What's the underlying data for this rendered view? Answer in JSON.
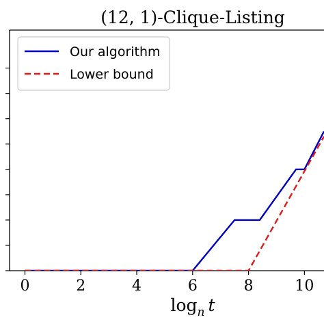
{
  "chart_data": {
    "type": "line",
    "title": "(12, 1)-Clique-Listing",
    "xlabel": "log_n t",
    "ylabel": "",
    "xlim": [
      -0.55,
      10.7
    ],
    "ylim": [
      0,
      9.5
    ],
    "xticks": [
      0,
      2,
      4,
      6,
      8,
      10
    ],
    "yticks": [
      0,
      1,
      2,
      3,
      4,
      5,
      6,
      7,
      8
    ],
    "grid": false,
    "legend_position": "top-left",
    "series": [
      {
        "name": "Our algorithm",
        "style": "solid",
        "color": "#0000bf",
        "x": [
          0,
          6,
          7.5,
          8.4,
          9.7,
          10,
          10.7
        ],
        "y": [
          0,
          0,
          2,
          2,
          4,
          4,
          5.5
        ]
      },
      {
        "name": "Lower bound",
        "style": "dashed",
        "color": "#dd1c1c",
        "x": [
          0,
          8,
          10.7
        ],
        "y": [
          0,
          0,
          5.3
        ]
      }
    ]
  }
}
